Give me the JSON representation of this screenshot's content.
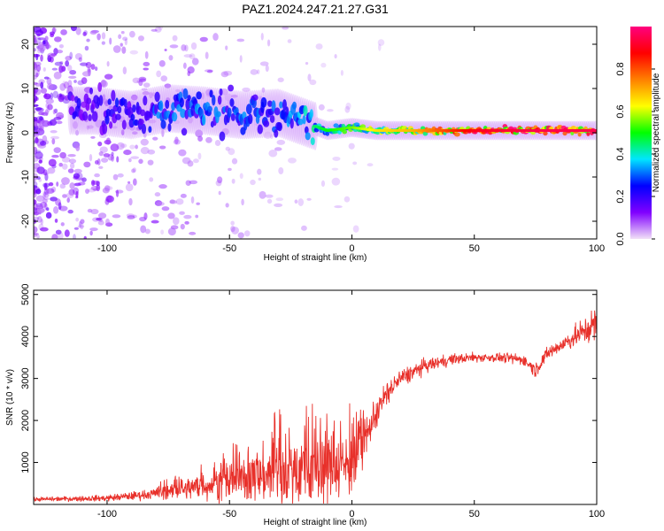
{
  "title": "PAZ1.2024.247.21.27.G31",
  "chart_data": [
    {
      "type": "heatmap",
      "xlabel": "Height of straight line (km)",
      "ylabel": "Frequency (Hz)",
      "xlim": [
        -130,
        100
      ],
      "ylim": [
        -24,
        24
      ],
      "xticks": [
        -100,
        -50,
        0,
        50,
        100
      ],
      "yticks": [
        -20,
        -10,
        0,
        10,
        20
      ],
      "grid": false,
      "colorbar": {
        "label": "Normalized spectral amplitude",
        "range": [
          0,
          1
        ],
        "ticks": [
          0.0,
          0.2,
          0.4,
          0.6,
          0.8
        ],
        "colormap": [
          "#f2e1f7",
          "#8000ff",
          "#0000ff",
          "#00e5ff",
          "#00ff00",
          "#ffff00",
          "#ff8000",
          "#ff0000",
          "#ff007f"
        ]
      },
      "ridge": [
        {
          "x": -105,
          "freq": 5.0,
          "amp": 0.2
        },
        {
          "x": -90,
          "freq": 4.0,
          "amp": 0.25
        },
        {
          "x": -75,
          "freq": 5.5,
          "amp": 0.3
        },
        {
          "x": -60,
          "freq": 5.0,
          "amp": 0.3
        },
        {
          "x": -45,
          "freq": 4.0,
          "amp": 0.3
        },
        {
          "x": -30,
          "freq": 4.5,
          "amp": 0.3
        },
        {
          "x": -20,
          "freq": 2.5,
          "amp": 0.35
        },
        {
          "x": -10,
          "freq": 0.5,
          "amp": 0.45
        },
        {
          "x": 0,
          "freq": 1.2,
          "amp": 0.5
        },
        {
          "x": 10,
          "freq": 0.5,
          "amp": 0.6
        },
        {
          "x": 25,
          "freq": 0.5,
          "amp": 0.65
        },
        {
          "x": 50,
          "freq": 0.5,
          "amp": 0.85
        },
        {
          "x": 75,
          "freq": 0.5,
          "amp": 0.9
        },
        {
          "x": 100,
          "freq": 0.5,
          "amp": 0.9
        }
      ]
    },
    {
      "type": "line",
      "xlabel": "Height of straight line (km)",
      "ylabel": "SNR (10 * v/v)",
      "xlim": [
        -130,
        100
      ],
      "ylim": [
        0,
        5100
      ],
      "xticks": [
        -100,
        -50,
        0,
        50,
        100
      ],
      "yticks": [
        1000,
        2000,
        3000,
        4000,
        5000
      ],
      "grid": false,
      "series": [
        {
          "color": "#e8302a",
          "x": [
            -130,
            -120,
            -110,
            -100,
            -90,
            -80,
            -70,
            -60,
            -50,
            -40,
            -30,
            -20,
            -10,
            0,
            5,
            10,
            15,
            20,
            30,
            40,
            50,
            60,
            70,
            75,
            80,
            90,
            100
          ],
          "baseline": [
            120,
            130,
            140,
            150,
            200,
            260,
            350,
            450,
            550,
            650,
            750,
            850,
            900,
            1000,
            1500,
            2200,
            2700,
            3000,
            3300,
            3450,
            3500,
            3500,
            3450,
            3200,
            3600,
            3950,
            4300
          ],
          "spread": [
            40,
            50,
            60,
            70,
            90,
            120,
            200,
            300,
            450,
            550,
            700,
            800,
            800,
            700,
            500,
            350,
            250,
            200,
            150,
            120,
            100,
            100,
            120,
            150,
            150,
            200,
            400
          ]
        }
      ]
    }
  ]
}
